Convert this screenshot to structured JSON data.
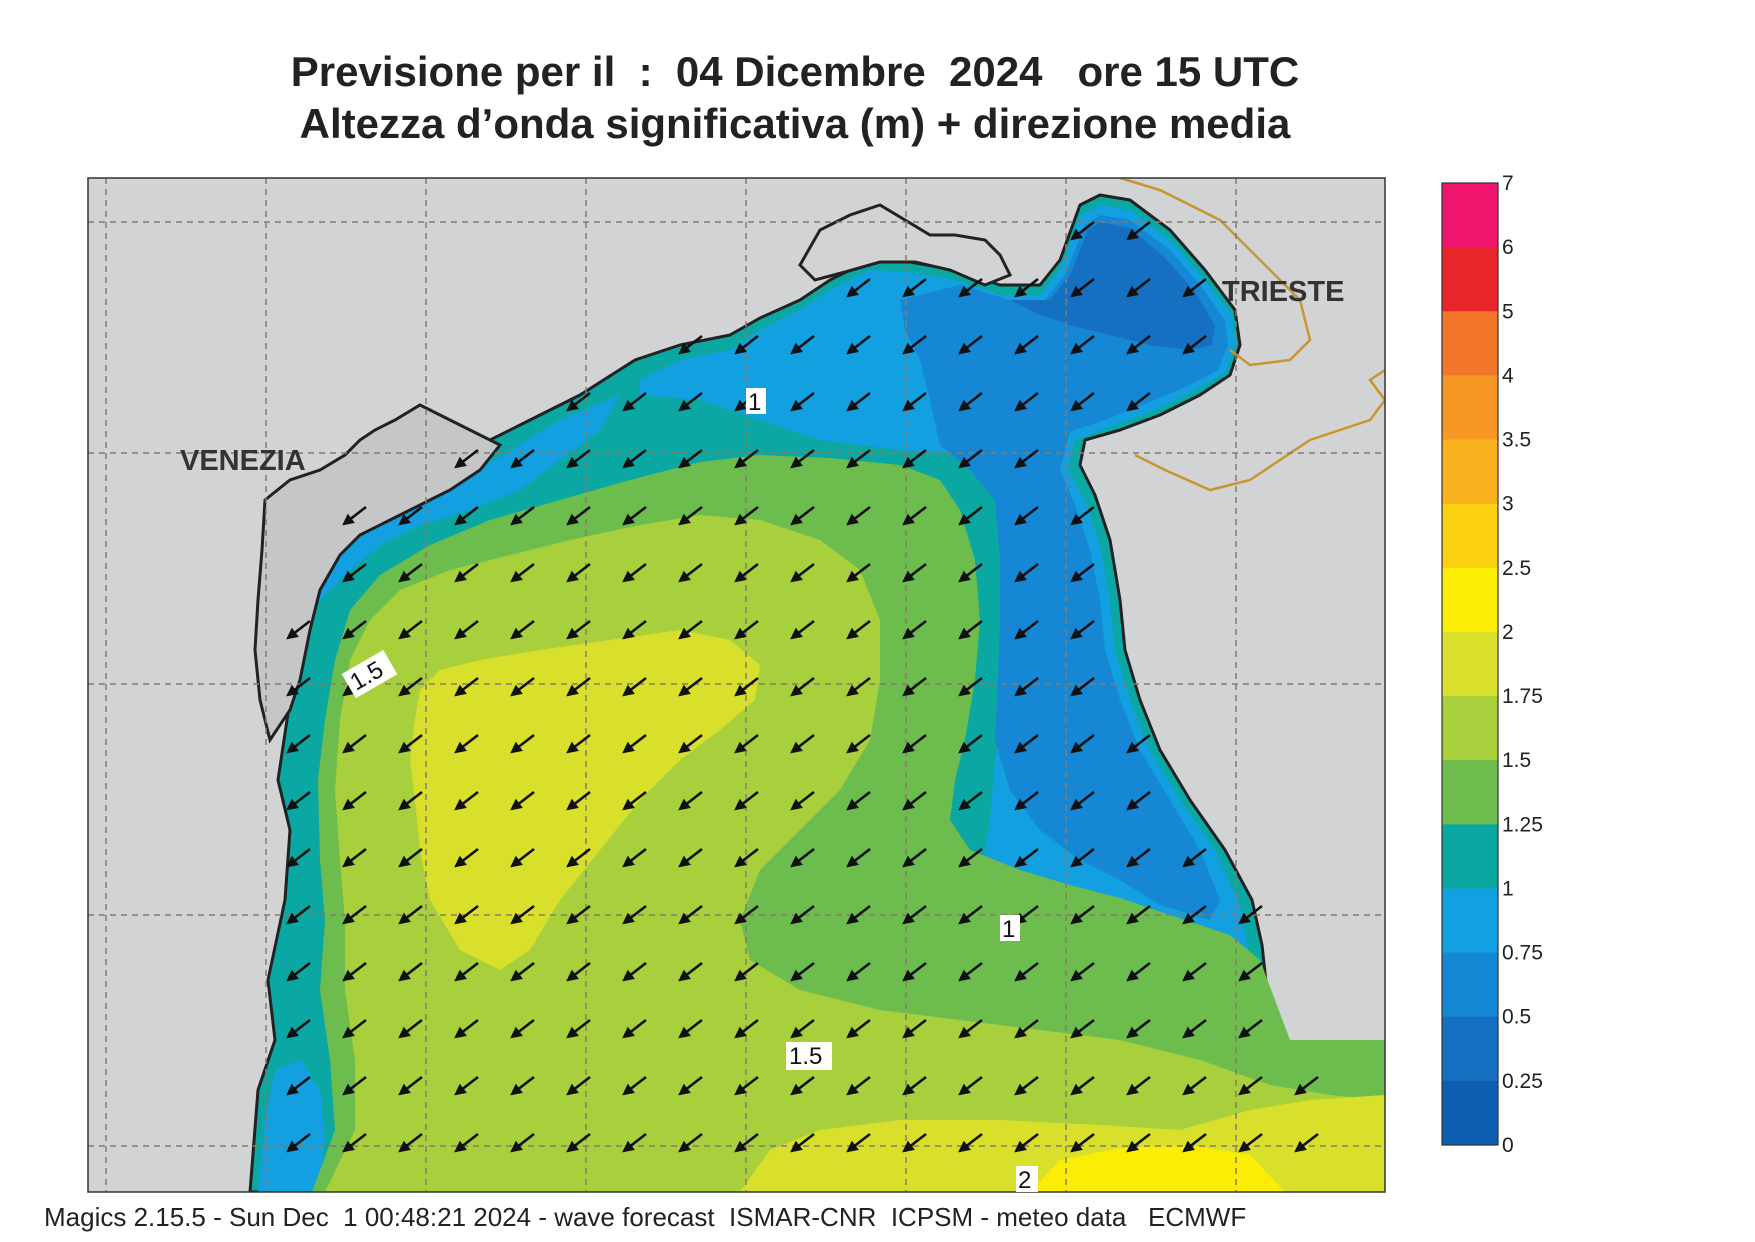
{
  "title": {
    "line1": "Previsione per il  :  04 Dicembre  2024   ore 15 UTC",
    "line2": "Altezza d’onda significativa (m) + direzione media"
  },
  "cities": [
    {
      "id": "venezia",
      "label": "VENEZIA"
    },
    {
      "id": "trieste",
      "label": "TRIESTE"
    }
  ],
  "contour_labels": [
    "1",
    "1.5",
    "1",
    "1.5",
    "2"
  ],
  "legend": {
    "labels": [
      "7",
      "6",
      "5",
      "4",
      "3.5",
      "3",
      "2.5",
      "2",
      "1.75",
      "1.5",
      "1.25",
      "1",
      "0.75",
      "0.5",
      "0.25",
      "0"
    ],
    "colors": [
      "#f0156e",
      "#e8252b",
      "#f2762a",
      "#f79826",
      "#f9b11e",
      "#fbd00e",
      "#fbed05",
      "#d8e02c",
      "#a8cf3c",
      "#6cbd4e",
      "#0ba7a3",
      "#12a0e0",
      "#1687d4",
      "#1570c2",
      "#0b5eb0"
    ]
  },
  "wave_direction": "toward south-west",
  "colors": {
    "land": "#d2d3d4",
    "border": "#c8952e",
    "coast": "#222222"
  },
  "footer": "Magics 2.15.5 - Sun Dec  1 00:48:21 2024 - wave forecast  ISMAR-CNR  ICPSM - meteo data   ECMWF"
}
